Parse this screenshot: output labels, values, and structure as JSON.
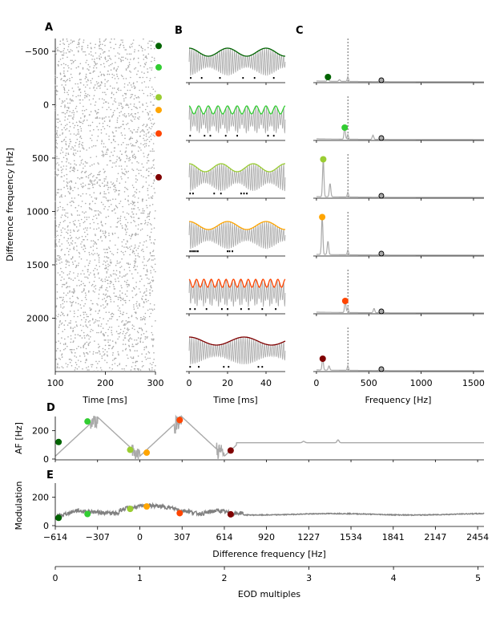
{
  "colors": {
    "beat_1": "#006400",
    "beat_2": "#32cd32",
    "beat_3": "#9acd32",
    "beat_4": "#ffa500",
    "beat_5": "#ff4500",
    "beat_6": "#800000",
    "gray_trace": "#aaaaaa",
    "dark_trace": "#808080"
  },
  "chart_data": [
    {
      "panel": "A",
      "type": "scatter",
      "xlabel": "Time [ms]",
      "ylabel": "Difference frequency [Hz]",
      "xlim": [
        100,
        300
      ],
      "ylim": [
        2500,
        -620
      ],
      "y_inverted": true,
      "xticks": [
        100,
        200,
        300
      ],
      "yticks": [
        -500,
        0,
        500,
        1000,
        1500,
        2000
      ],
      "ytick_labels": [
        "−500",
        "0",
        "500",
        "1000",
        "1500",
        "2000"
      ],
      "marker_df": [
        -550,
        -350,
        -70,
        50,
        270,
        680
      ]
    },
    {
      "panel": "B",
      "type": "line",
      "xlabel": "Time [ms]",
      "xlim": [
        0,
        50
      ],
      "xticks": [
        0,
        20,
        40
      ],
      "rows": [
        {
          "df": -550,
          "envelope_hz": 50
        },
        {
          "df": -350,
          "envelope_hz": 200
        },
        {
          "df": -70,
          "envelope_hz": 60
        },
        {
          "df": 50,
          "envelope_hz": 50
        },
        {
          "df": 270,
          "envelope_hz": 260
        },
        {
          "df": 680,
          "envelope_hz": 35
        }
      ],
      "spike_times_ms": [
        [
          0.8,
          6.5,
          16,
          28,
          34,
          44
        ],
        [
          0.5,
          8,
          11,
          19,
          25,
          41,
          44
        ],
        [
          0.5,
          2,
          13,
          16.5,
          27,
          28.5,
          30
        ],
        [
          0.5,
          1.5,
          2.5,
          3.5,
          4.5,
          20,
          21,
          22.5
        ],
        [
          0.5,
          3,
          9,
          17,
          20,
          27,
          31,
          38,
          45
        ],
        [
          0.5,
          5,
          18,
          20.5,
          36,
          38
        ]
      ]
    },
    {
      "panel": "C",
      "type": "line",
      "xlabel": "Frequency [Hz]",
      "xlim": [
        -30,
        1600
      ],
      "xticks": [
        0,
        500,
        1000,
        1500
      ],
      "vline_hz": 300,
      "rows": [
        {
          "peak_hz": 110,
          "peak_amp": 0.12
        },
        {
          "peak_hz": 270,
          "peak_amp": 0.3
        },
        {
          "peak_hz": 65,
          "peak_amp": 0.95
        },
        {
          "peak_hz": 55,
          "peak_amp": 0.95
        },
        {
          "peak_hz": 275,
          "peak_amp": 0.3
        },
        {
          "peak_hz": 60,
          "peak_amp": 0.3
        }
      ],
      "eod_marker_hz": 620
    },
    {
      "panel": "D",
      "type": "line",
      "ylabel": "AF [Hz]",
      "ylim": [
        0,
        300
      ],
      "yticks": [
        0,
        200
      ],
      "points": [
        {
          "df": -590,
          "value": 120
        },
        {
          "df": -380,
          "value": 265
        },
        {
          "df": -70,
          "value": 65
        },
        {
          "df": 50,
          "value": 45
        },
        {
          "df": 290,
          "value": 275
        },
        {
          "df": 660,
          "value": 60
        }
      ]
    },
    {
      "panel": "E",
      "type": "line",
      "ylabel": "Modulation",
      "xlabel": "Difference frequency [Hz]",
      "xlim": [
        -614,
        2500
      ],
      "ylim": [
        0,
        300
      ],
      "yticks": [
        0,
        200
      ],
      "xticks": [
        -614,
        -307,
        0,
        307,
        614,
        920,
        1227,
        1534,
        1841,
        2147,
        2454
      ],
      "xtick_labels": [
        "−614",
        "−307",
        "0",
        "307",
        "614",
        "920",
        "1227",
        "1534",
        "1841",
        "2147",
        "2454"
      ],
      "points": [
        {
          "df": -590,
          "value": 55
        },
        {
          "df": -380,
          "value": 82
        },
        {
          "df": -70,
          "value": 118
        },
        {
          "df": 50,
          "value": 135
        },
        {
          "df": 290,
          "value": 88
        },
        {
          "df": 660,
          "value": 80
        }
      ],
      "secondary_axis": {
        "xlabel": "EOD multiples",
        "xlim": [
          0,
          5.07
        ],
        "xticks": [
          0,
          1,
          2,
          3,
          4,
          5
        ]
      }
    }
  ]
}
